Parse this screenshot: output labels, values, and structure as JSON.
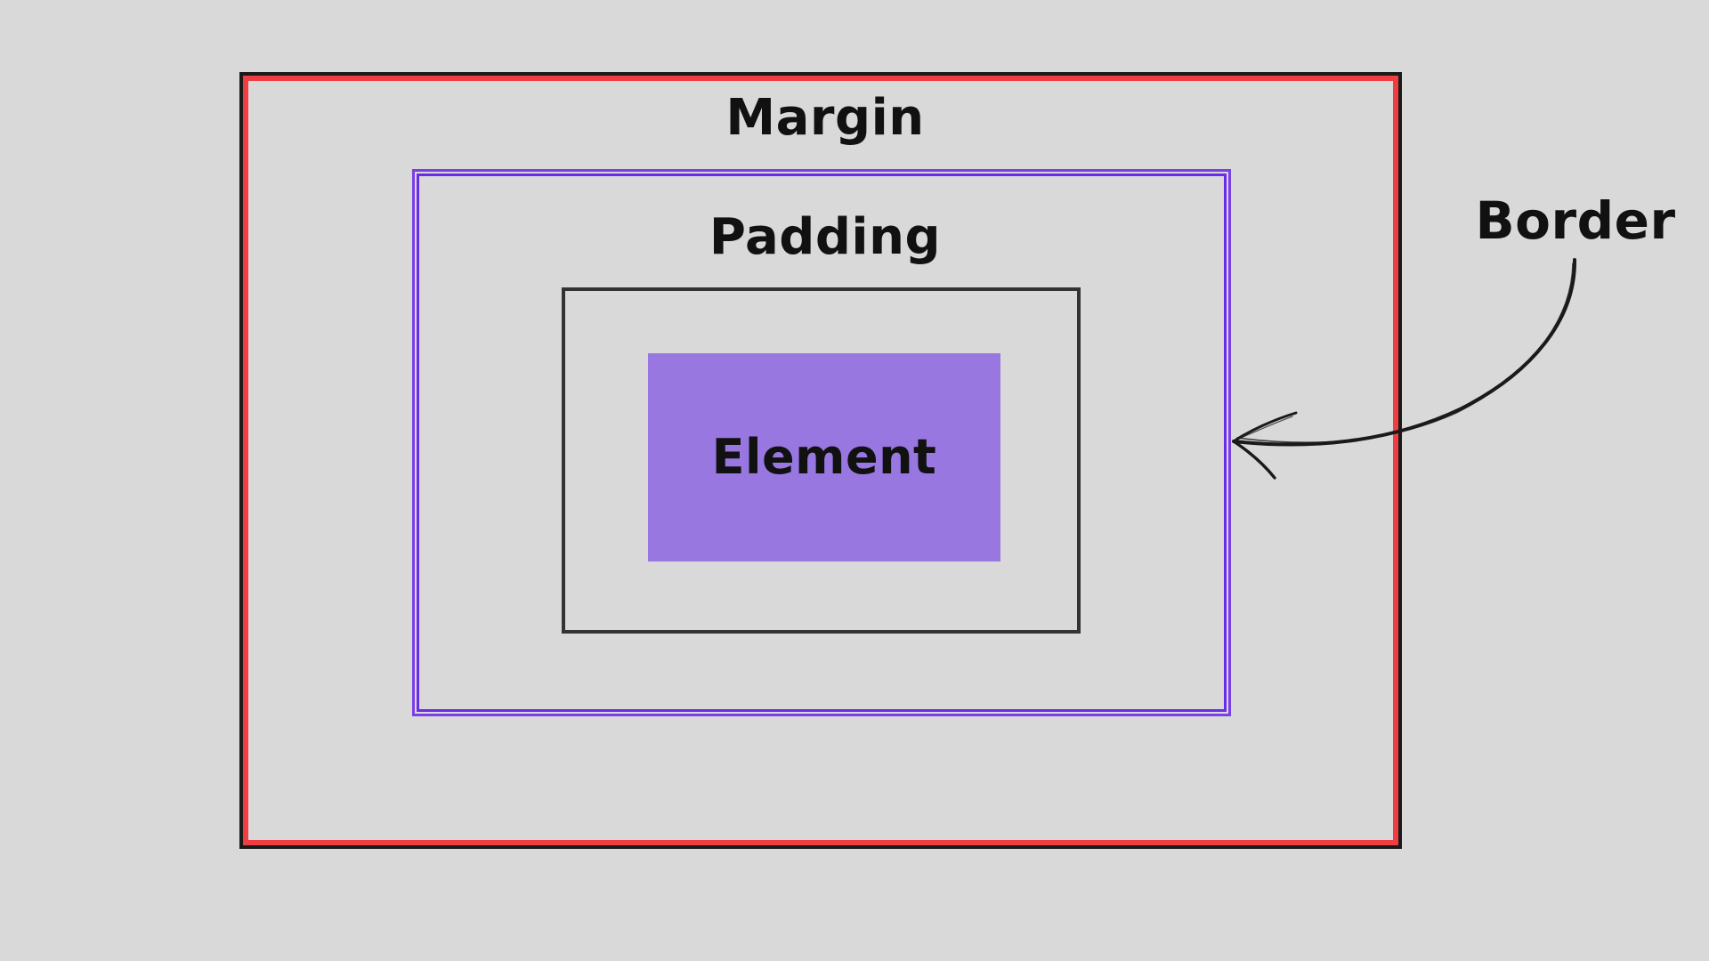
{
  "diagram": {
    "labels": {
      "margin": "Margin",
      "padding": "Padding",
      "element": "Element",
      "border": "Border"
    },
    "colors": {
      "background": "#d9d9d9",
      "margin_outline": "#1a1a1a",
      "border_line": "#ef3e42",
      "padding_line": "#6a2ce8",
      "content_line": "#333333",
      "element_fill": "#9878e0",
      "text": "#111111"
    },
    "icons": {
      "annotation_arrow": "hand-drawn-arrow-icon"
    }
  }
}
